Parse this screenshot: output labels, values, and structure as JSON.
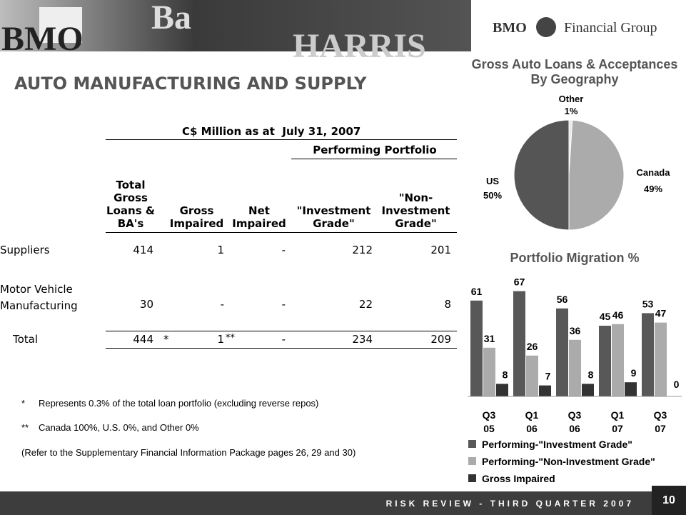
{
  "header": {
    "banner_texts": [
      "BMO",
      "Ba",
      "HARRIS"
    ],
    "logo_left": "BMO",
    "logo_right": "Financial Group"
  },
  "title": "AUTO MANUFACTURING AND SUPPLY",
  "table": {
    "caption": "C$ Million as at  July 31, 2007",
    "group_header": "Performing Portfolio",
    "columns": [
      "Total Gross Loans & BA's",
      "Gross Impaired",
      "Net Impaired",
      "\"Investment Grade\"",
      "\"Non-Investment Grade\""
    ],
    "rows": [
      [
        "Suppliers",
        "414",
        "1",
        "-",
        "212",
        "201"
      ],
      [
        "Motor Vehicle Manufacturing",
        "30",
        "-",
        "-",
        "22",
        "8"
      ],
      [
        "Total",
        "444",
        "1",
        "-",
        "234",
        "209"
      ]
    ],
    "total_markers": [
      "*",
      "**"
    ]
  },
  "footnotes": [
    {
      "marker": "*",
      "text": "Represents 0.3% of the total loan portfolio (excluding reverse repos)"
    },
    {
      "marker": "**",
      "text": "Canada 100%, U.S. 0%, and Other 0%"
    },
    {
      "text": "(Refer to the Supplementary Financial Information Package pages 26, 29 and 30)"
    }
  ],
  "footer": {
    "text": "RISK REVIEW - THIRD QUARTER 2007",
    "page": "10"
  },
  "chart_data": [
    {
      "type": "pie",
      "title": "Gross Auto Loans & Acceptances By Geography",
      "categories": [
        "Other",
        "Canada",
        "US"
      ],
      "values": [
        1,
        49,
        50
      ],
      "value_labels": [
        "1%",
        "49%",
        "50%"
      ],
      "colors": [
        "#e8e8e8",
        "#ababab",
        "#555555"
      ]
    },
    {
      "type": "bar",
      "title": "Portfolio Migration %",
      "categories": [
        "Q3 05",
        "Q1 06",
        "Q3 06",
        "Q1 07",
        "Q3 07"
      ],
      "series": [
        {
          "name": "Performing-\"Investment Grade\"",
          "color": "#585858",
          "values": [
            61,
            67,
            56,
            45,
            53
          ]
        },
        {
          "name": "Performing-\"Non-Investment Grade\"",
          "color": "#ababab",
          "values": [
            31,
            26,
            36,
            46,
            47
          ]
        },
        {
          "name": "Gross Impaired",
          "color": "#333333",
          "values": [
            8,
            7,
            8,
            9,
            0
          ]
        }
      ],
      "ylim": [
        0,
        75
      ],
      "legend": "bottom"
    }
  ]
}
